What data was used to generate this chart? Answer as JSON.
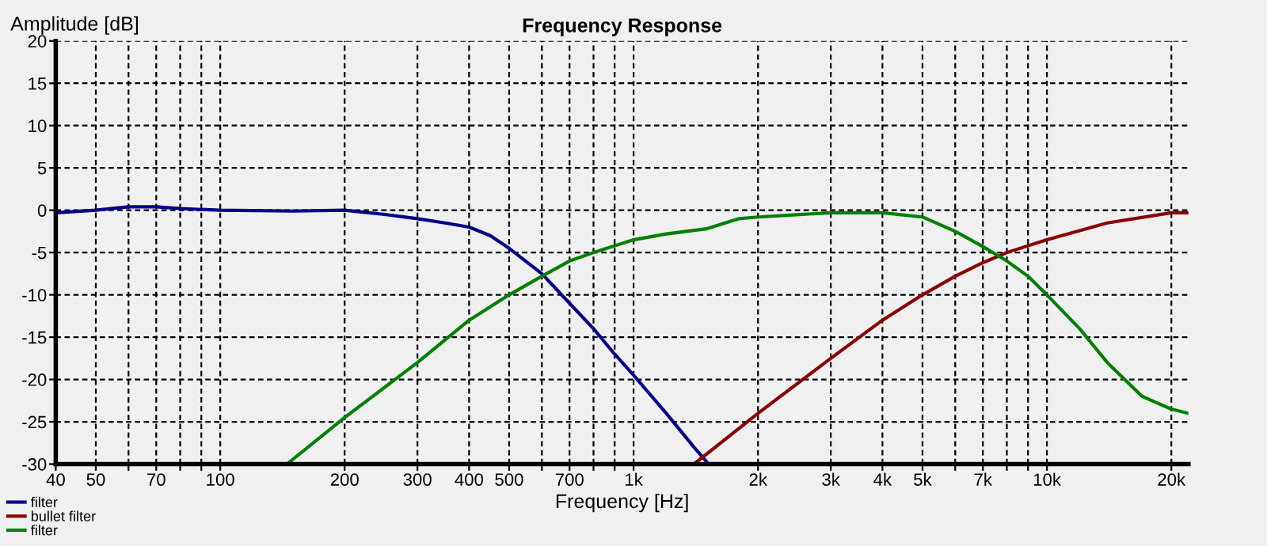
{
  "chart_data": {
    "type": "line",
    "title": "Frequency Response",
    "xlabel": "Frequency [Hz]",
    "ylabel": "Amplitude [dB]",
    "log": "x",
    "grid": true,
    "legend": "bottom left",
    "line_style": "solid",
    "marker": "none",
    "xlim": [
      40,
      22000
    ],
    "ylim": [
      -30,
      20
    ],
    "yticks": [
      -30,
      -25,
      -20,
      -15,
      -10,
      -5,
      0,
      5,
      10,
      15,
      20
    ],
    "xticks": [
      40,
      50,
      {
        "value": 60,
        "label": null
      },
      70,
      {
        "value": 80,
        "label": null
      },
      {
        "value": 90,
        "label": null
      },
      100,
      200,
      300,
      400,
      500,
      {
        "value": 600,
        "label": null
      },
      700,
      {
        "value": 800,
        "label": null
      },
      {
        "value": 900,
        "label": null
      },
      {
        "value": 1000,
        "label": "1k"
      },
      {
        "value": 2000,
        "label": "2k"
      },
      {
        "value": 3000,
        "label": "3k"
      },
      {
        "value": 4000,
        "label": "4k"
      },
      {
        "value": 5000,
        "label": "5k"
      },
      {
        "value": 6000,
        "label": null
      },
      {
        "value": 7000,
        "label": "7k"
      },
      {
        "value": 8000,
        "label": null
      },
      {
        "value": 9000,
        "label": null
      },
      {
        "value": 10000,
        "label": "10k"
      },
      {
        "value": 20000,
        "label": "20k"
      }
    ],
    "series": [
      {
        "name": "filter",
        "color": "#00008b",
        "x": [
          40,
          50,
          60,
          70,
          80,
          100,
          150,
          200,
          250,
          300,
          350,
          400,
          450,
          500,
          600,
          700,
          800,
          900,
          1000,
          1200,
          1400,
          1520
        ],
        "values": [
          -0.3,
          0,
          0.4,
          0.4,
          0.2,
          0,
          -0.1,
          0,
          -0.5,
          -1,
          -1.5,
          -2,
          -3,
          -4.5,
          -7.5,
          -11,
          -14,
          -17,
          -19.5,
          -24,
          -28,
          -30
        ]
      },
      {
        "name": "bullet filter",
        "color": "#8b0000",
        "x": [
          1400,
          2000,
          3000,
          4000,
          5000,
          6000,
          7000,
          8000,
          10000,
          14000,
          20000,
          22000
        ],
        "values": [
          -30,
          -24,
          -17.5,
          -13,
          -10,
          -7.8,
          -6.2,
          -5,
          -3.5,
          -1.5,
          -0.3,
          -0.3
        ]
      },
      {
        "name": "filter",
        "color": "#008000",
        "x": [
          145,
          200,
          300,
          400,
          500,
          600,
          700,
          800,
          1000,
          1200,
          1500,
          1800,
          2000,
          3000,
          4000,
          5000,
          6000,
          7000,
          8000,
          9000,
          10000,
          12000,
          14000,
          17000,
          20000,
          22000
        ],
        "values": [
          -30,
          -24.5,
          -18,
          -13,
          -10,
          -7.8,
          -6,
          -5,
          -3.5,
          -2.8,
          -2.2,
          -1,
          -0.8,
          -0.3,
          -0.3,
          -0.8,
          -2.5,
          -4.3,
          -6,
          -7.8,
          -10,
          -14,
          -18,
          -22,
          -23.5,
          -24
        ]
      }
    ]
  }
}
